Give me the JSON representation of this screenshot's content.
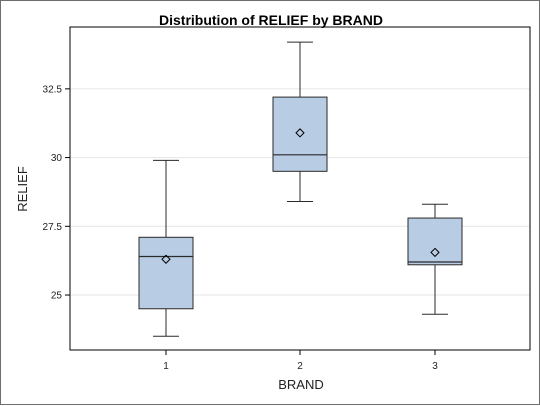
{
  "chart_data": {
    "type": "box",
    "title": "Distribution of  RELIEF   by   BRAND",
    "xlabel": "BRAND",
    "ylabel": "RELIEF",
    "categories": [
      "1",
      "2",
      "3"
    ],
    "ylim": [
      23.0,
      34.75
    ],
    "yticks": [
      25,
      27.5,
      30,
      32.5
    ],
    "ytick_labels": [
      "25",
      "27.5",
      "30",
      "32.5"
    ],
    "grid": "horizontal",
    "colors": {
      "box_fill": "#b8cce4",
      "box_stroke": "#2a2a2a",
      "grid": "#e6e6e6",
      "frame": "#000000"
    },
    "boxes": [
      {
        "category": "1",
        "min": 23.5,
        "q1": 24.5,
        "median": 26.4,
        "q3": 27.1,
        "max": 29.9,
        "mean": 26.3
      },
      {
        "category": "2",
        "min": 28.4,
        "q1": 29.5,
        "median": 30.1,
        "q3": 32.2,
        "max": 34.2,
        "mean": 30.9
      },
      {
        "category": "3",
        "min": 24.3,
        "q1": 26.1,
        "median": 26.2,
        "q3": 27.8,
        "max": 28.3,
        "mean": 26.55
      }
    ]
  }
}
